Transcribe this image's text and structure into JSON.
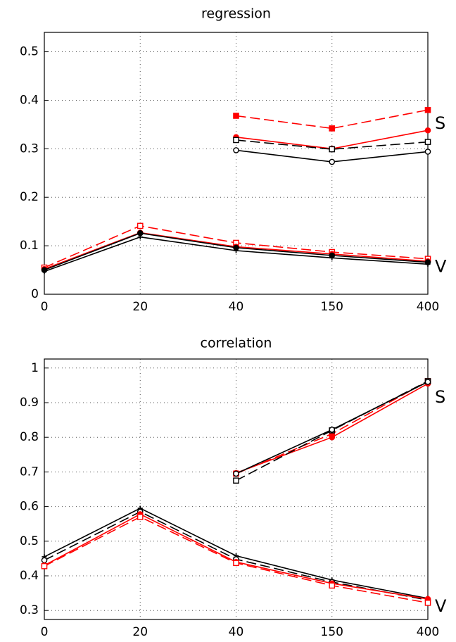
{
  "chart_data": [
    {
      "type": "line",
      "title": "regression",
      "categories": [
        "0",
        "20",
        "40",
        "150",
        "400"
      ],
      "ylim": [
        0,
        0.54
      ],
      "yticks": [
        0,
        0.1,
        0.2,
        0.3,
        0.4,
        0.5
      ],
      "grid": true,
      "annotations": [
        "S",
        "V"
      ],
      "series": [
        {
          "color": "#ff0000",
          "dash": true,
          "marker": "square-filled",
          "values": [
            null,
            null,
            0.368,
            0.342,
            0.38
          ]
        },
        {
          "color": "#ff0000",
          "dash": false,
          "marker": "circle-filled",
          "values": [
            null,
            null,
            0.324,
            0.3,
            0.338
          ]
        },
        {
          "color": "#000000",
          "dash": true,
          "marker": "square-open",
          "values": [
            null,
            null,
            0.318,
            0.299,
            0.314
          ]
        },
        {
          "color": "#000000",
          "dash": false,
          "marker": "circle-open",
          "values": [
            null,
            null,
            0.297,
            0.273,
            0.294
          ]
        },
        {
          "color": "#ff0000",
          "dash": true,
          "marker": "square-open",
          "values": [
            0.055,
            0.141,
            0.106,
            0.087,
            0.073
          ]
        },
        {
          "color": "#ff0000",
          "dash": false,
          "marker": "circle-filled",
          "values": [
            0.052,
            0.127,
            0.098,
            0.083,
            0.068
          ]
        },
        {
          "color": "#000000",
          "dash": false,
          "marker": "circle-filled",
          "values": [
            0.05,
            0.126,
            0.096,
            0.08,
            0.066
          ]
        },
        {
          "color": "#000000",
          "dash": false,
          "marker": "plus",
          "values": [
            0.047,
            0.118,
            0.09,
            0.075,
            0.062
          ]
        }
      ]
    },
    {
      "type": "line",
      "title": "correlation",
      "categories": [
        "0",
        "20",
        "40",
        "150",
        "400"
      ],
      "ylim": [
        0.274,
        1.026
      ],
      "yticks": [
        0.3,
        0.4,
        0.5,
        0.6,
        0.7,
        0.8,
        0.9,
        1
      ],
      "grid": true,
      "annotations": [
        "S",
        "V"
      ],
      "series": [
        {
          "color": "#ff0000",
          "dash": false,
          "marker": "circle-filled",
          "values": [
            null,
            null,
            0.697,
            0.8,
            0.955
          ]
        },
        {
          "color": "#ff0000",
          "dash": true,
          "marker": "square-filled",
          "values": [
            null,
            null,
            0.695,
            0.81,
            0.962
          ]
        },
        {
          "color": "#000000",
          "dash": true,
          "marker": "square-open",
          "values": [
            null,
            null,
            0.675,
            0.82,
            0.962
          ]
        },
        {
          "color": "#000000",
          "dash": false,
          "marker": "circle-open",
          "values": [
            null,
            null,
            0.695,
            0.822,
            0.96
          ]
        },
        {
          "color": "#000000",
          "dash": false,
          "marker": "plus",
          "values": [
            0.455,
            0.595,
            0.458,
            0.388,
            0.335
          ]
        },
        {
          "color": "#000000",
          "dash": true,
          "marker": "circle-open",
          "values": [
            0.445,
            0.585,
            0.448,
            0.382,
            0.33
          ]
        },
        {
          "color": "#ff0000",
          "dash": false,
          "marker": "circle-filled",
          "values": [
            0.43,
            0.578,
            0.44,
            0.378,
            0.333
          ]
        },
        {
          "color": "#ff0000",
          "dash": true,
          "marker": "square-open",
          "values": [
            0.428,
            0.57,
            0.437,
            0.372,
            0.322
          ]
        }
      ]
    }
  ]
}
